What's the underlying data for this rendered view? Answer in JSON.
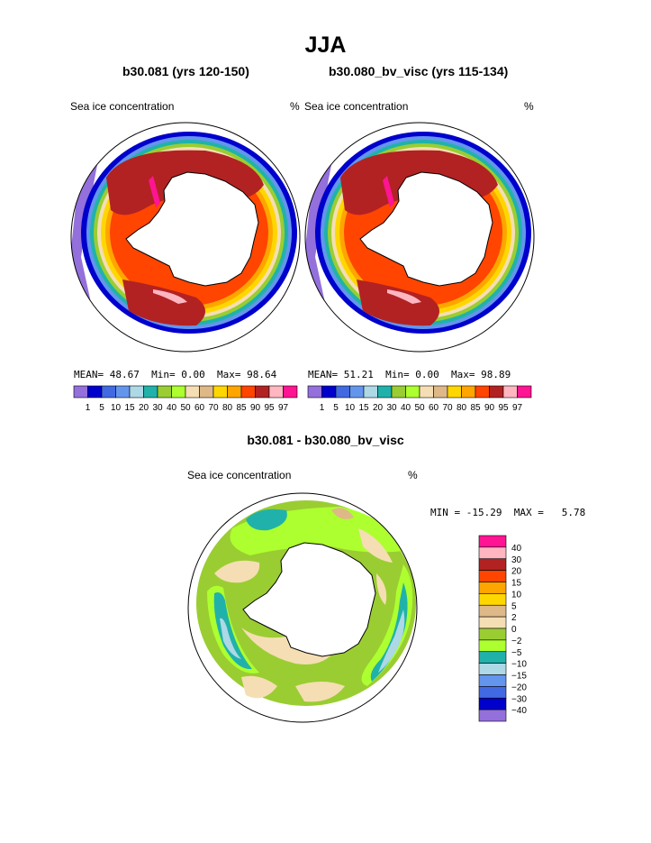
{
  "chart_data": [
    {
      "type": "heatmap",
      "projection": "south polar stereographic",
      "title": "JJA",
      "subtitle": "b30.081 (yrs 120-150)",
      "variable_label": "Sea ice concentration",
      "units": "%",
      "stats": {
        "mean_label": "MEAN=",
        "mean": "48.67",
        "min_label": "Min=",
        "min": "0.00",
        "max_label": "Max=",
        "max": "98.64"
      },
      "contour_levels": [
        "1",
        "5",
        "10",
        "15",
        "20",
        "30",
        "40",
        "50",
        "60",
        "70",
        "80",
        "85",
        "90",
        "95",
        "97"
      ],
      "colors": [
        "#9370db",
        "#0000cd",
        "#4169e1",
        "#6495ed",
        "#add8e6",
        "#20b2aa",
        "#9acd32",
        "#adff2f",
        "#f5deb3",
        "#deb887",
        "#ffd700",
        "#ffa500",
        "#ff4500",
        "#b22222",
        "#ffb6c1",
        "#ff1493"
      ]
    },
    {
      "type": "heatmap",
      "projection": "south polar stereographic",
      "subtitle": "b30.080_bv_visc (yrs 115-134)",
      "variable_label": "Sea ice concentration",
      "units": "%",
      "stats": {
        "mean_label": "MEAN=",
        "mean": "51.21",
        "min_label": "Min=",
        "min": "0.00",
        "max_label": "Max=",
        "max": "98.89"
      },
      "contour_levels": [
        "1",
        "5",
        "10",
        "15",
        "20",
        "30",
        "40",
        "50",
        "60",
        "70",
        "80",
        "85",
        "90",
        "95",
        "97"
      ],
      "colors": [
        "#9370db",
        "#0000cd",
        "#4169e1",
        "#6495ed",
        "#add8e6",
        "#20b2aa",
        "#9acd32",
        "#adff2f",
        "#f5deb3",
        "#deb887",
        "#ffd700",
        "#ffa500",
        "#ff4500",
        "#b22222",
        "#ffb6c1",
        "#ff1493"
      ]
    },
    {
      "type": "heatmap",
      "projection": "south polar stereographic",
      "subtitle": "b30.081 - b30.080_bv_visc",
      "variable_label": "Sea ice concentration",
      "units": "%",
      "stats": {
        "min_label": "MIN =",
        "min": "-15.29",
        "max_label": "MAX =",
        "max": "5.78"
      },
      "contour_levels": [
        "40",
        "30",
        "20",
        "15",
        "10",
        "5",
        "2",
        "0",
        "−2",
        "−5",
        "−10",
        "−15",
        "−20",
        "−30",
        "−40"
      ],
      "colors": [
        "#ff1493",
        "#ffb6c1",
        "#b22222",
        "#ff4500",
        "#ffa500",
        "#ffd700",
        "#deb887",
        "#f5deb3",
        "#9acd32",
        "#adff2f",
        "#20b2aa",
        "#add8e6",
        "#6495ed",
        "#4169e1",
        "#0000cd",
        "#9370db"
      ]
    }
  ]
}
